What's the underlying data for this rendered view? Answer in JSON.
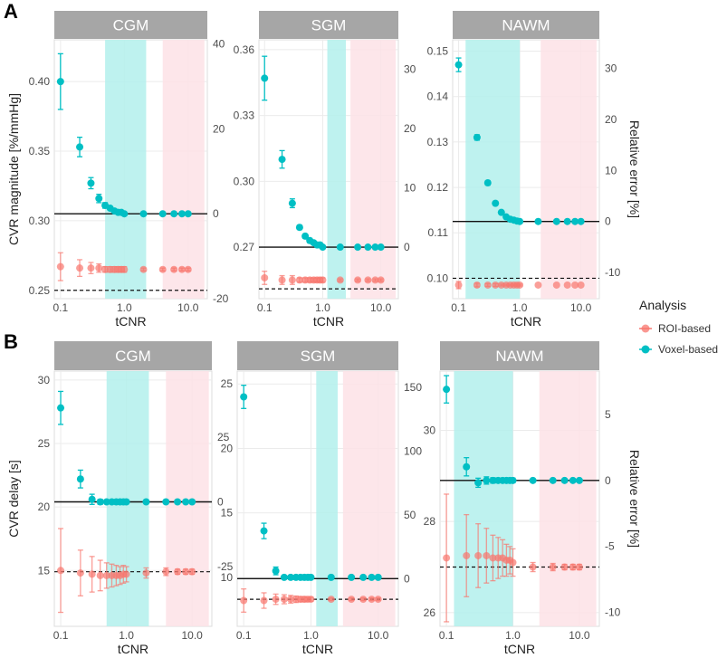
{
  "panels": [
    {
      "letter": "A"
    },
    {
      "letter": "B"
    }
  ],
  "legend": {
    "title": "Analysis",
    "items": [
      {
        "label": "ROI-based",
        "color": "#F8766D"
      },
      {
        "label": "Voxel-based",
        "color": "#00BFC4"
      }
    ]
  },
  "colors": {
    "roi": "#F8766D",
    "voxel": "#00BFC4",
    "voxel_band": "#b3f0ec",
    "roi_band": "#fde2e6",
    "strip": "#a6a6a6",
    "grid": "#ebebeb"
  },
  "chart_data": [
    {
      "type": "scatter",
      "row": "A",
      "title": "CGM",
      "xlabel": "tCNR",
      "ylabel": "CVR magnitude [%/mmHg]",
      "ylabel_right": "",
      "x_scale": "log",
      "xlim": [
        0.08,
        20
      ],
      "xticks": [
        0.1,
        1.0,
        10.0
      ],
      "xtick_labels": [
        "0.1",
        "1.0",
        "10.0"
      ],
      "ylim": [
        0.244,
        0.43
      ],
      "yticks": [
        0.25,
        0.3,
        0.35,
        0.4
      ],
      "ytick_labels": [
        "0.25",
        "0.30",
        "0.35",
        "0.40"
      ],
      "y2_ticks": [
        -20,
        0,
        20,
        40
      ],
      "true_value": 0.305,
      "ref_value": 0.25,
      "voxel_band": [
        0.5,
        2.2
      ],
      "roi_band": [
        4.0,
        18.0
      ],
      "series": [
        {
          "name": "Voxel-based",
          "x": [
            0.1,
            0.2,
            0.3,
            0.4,
            0.5,
            0.6,
            0.7,
            0.8,
            0.9,
            1.0,
            2.0,
            4.0,
            6.0,
            8.0,
            10.0
          ],
          "y": [
            0.4,
            0.353,
            0.327,
            0.316,
            0.311,
            0.309,
            0.307,
            0.306,
            0.306,
            0.305,
            0.305,
            0.305,
            0.305,
            0.305,
            0.305
          ],
          "err": [
            0.02,
            0.007,
            0.004,
            0.003,
            0.002,
            0.001,
            0.001,
            0.001,
            0.001,
            0.001,
            0.0005,
            0.0005,
            0.0005,
            0.0005,
            0.0005
          ]
        },
        {
          "name": "ROI-based",
          "x": [
            0.1,
            0.2,
            0.3,
            0.4,
            0.5,
            0.6,
            0.7,
            0.8,
            0.9,
            1.0,
            2.0,
            4.0,
            6.0,
            8.0,
            10.0
          ],
          "y": [
            0.267,
            0.266,
            0.266,
            0.266,
            0.265,
            0.265,
            0.265,
            0.265,
            0.265,
            0.265,
            0.265,
            0.265,
            0.265,
            0.265,
            0.265
          ],
          "err": [
            0.01,
            0.006,
            0.004,
            0.003,
            0.002,
            0.002,
            0.002,
            0.002,
            0.002,
            0.002,
            0.001,
            0.001,
            0.001,
            0.001,
            0.001
          ]
        }
      ]
    },
    {
      "type": "scatter",
      "row": "A",
      "title": "SGM",
      "xlabel": "tCNR",
      "ylabel": "",
      "ylabel_right": "",
      "x_scale": "log",
      "xlim": [
        0.08,
        20
      ],
      "xticks": [
        0.1,
        1.0,
        10.0
      ],
      "xtick_labels": [
        "0.1",
        "1.0",
        "10.0"
      ],
      "ylim": [
        0.2465,
        0.3645
      ],
      "yticks": [
        0.27,
        0.3,
        0.33,
        0.36
      ],
      "ytick_labels": [
        "0.27",
        "0.30",
        "0.33",
        "0.36"
      ],
      "y2_ticks": [
        -10,
        0,
        10,
        20,
        30
      ],
      "true_value": 0.27,
      "ref_value": 0.251,
      "voxel_band": [
        1.2,
        2.5
      ],
      "roi_band": [
        3.0,
        18.0
      ],
      "series": [
        {
          "name": "Voxel-based",
          "x": [
            0.1,
            0.2,
            0.3,
            0.4,
            0.5,
            0.6,
            0.7,
            0.8,
            0.9,
            1.0,
            2.0,
            4.0,
            6.0,
            8.0,
            10.0
          ],
          "y": [
            0.347,
            0.31,
            0.29,
            0.279,
            0.275,
            0.273,
            0.272,
            0.271,
            0.271,
            0.27,
            0.27,
            0.27,
            0.27,
            0.27,
            0.27
          ],
          "err": [
            0.01,
            0.004,
            0.002,
            0.001,
            0.001,
            0.001,
            0.0005,
            0.0005,
            0.0005,
            0.0005,
            0.0005,
            0.0005,
            0.0005,
            0.0005,
            0.0005
          ]
        },
        {
          "name": "ROI-based",
          "x": [
            0.1,
            0.2,
            0.3,
            0.4,
            0.5,
            0.6,
            0.7,
            0.8,
            0.9,
            1.0,
            2.0,
            4.0,
            6.0,
            8.0,
            10.0
          ],
          "y": [
            0.256,
            0.255,
            0.255,
            0.255,
            0.255,
            0.255,
            0.255,
            0.255,
            0.255,
            0.255,
            0.255,
            0.255,
            0.255,
            0.255,
            0.255
          ],
          "err": [
            0.003,
            0.002,
            0.002,
            0.001,
            0.001,
            0.001,
            0.001,
            0.001,
            0.001,
            0.001,
            0.0005,
            0.0005,
            0.0005,
            0.0005,
            0.0005
          ]
        }
      ]
    },
    {
      "type": "scatter",
      "row": "A",
      "title": "NAWM",
      "xlabel": "tCNR",
      "ylabel": "",
      "ylabel_right": "Relative error [%]",
      "x_scale": "log",
      "xlim": [
        0.08,
        20
      ],
      "xticks": [
        0.1,
        1.0,
        10.0
      ],
      "xtick_labels": [
        "0.1",
        "1.0",
        "10.0"
      ],
      "ylim": [
        0.0955,
        0.1525
      ],
      "yticks": [
        0.1,
        0.11,
        0.12,
        0.13,
        0.14,
        0.15
      ],
      "ytick_labels": [
        "0.10",
        "0.11",
        "0.12",
        "0.13",
        "0.14",
        "0.15"
      ],
      "y2_ticks": [
        -10,
        0,
        10,
        20,
        30
      ],
      "true_value": 0.1125,
      "ref_value": 0.1,
      "voxel_band": [
        0.13,
        1.0
      ],
      "roi_band": [
        2.2,
        18.0
      ],
      "series": [
        {
          "name": "Voxel-based",
          "x": [
            0.1,
            0.2,
            0.3,
            0.4,
            0.5,
            0.6,
            0.7,
            0.8,
            0.9,
            1.0,
            2.0,
            4.0,
            6.0,
            8.0,
            10.0
          ],
          "y": [
            0.147,
            0.131,
            0.121,
            0.1165,
            0.1145,
            0.1135,
            0.113,
            0.1128,
            0.1126,
            0.1125,
            0.1125,
            0.1125,
            0.1125,
            0.1125,
            0.1125
          ],
          "err": [
            0.0015,
            0.0006,
            0.0005,
            0.0004,
            0.0003,
            0.0003,
            0.0002,
            0.0002,
            0.0002,
            0.0002,
            0.0001,
            0.0001,
            0.0001,
            0.0001,
            0.0001
          ]
        },
        {
          "name": "ROI-based",
          "x": [
            0.1,
            0.2,
            0.3,
            0.4,
            0.5,
            0.6,
            0.7,
            0.8,
            0.9,
            1.0,
            2.0,
            4.0,
            6.0,
            8.0,
            10.0
          ],
          "y": [
            0.0985,
            0.0985,
            0.0985,
            0.0985,
            0.0985,
            0.0985,
            0.0985,
            0.0985,
            0.0985,
            0.0985,
            0.0985,
            0.0985,
            0.0985,
            0.0985,
            0.0985
          ],
          "err": [
            0.0008,
            0.0004,
            0.0003,
            0.0003,
            0.0002,
            0.0002,
            0.0002,
            0.0002,
            0.0002,
            0.0002,
            0.0001,
            0.0001,
            0.0001,
            0.0001,
            0.0001
          ]
        }
      ]
    },
    {
      "type": "scatter",
      "row": "B",
      "title": "CGM",
      "xlabel": "tCNR",
      "ylabel": "CVR delay [s]",
      "ylabel_right": "",
      "x_scale": "log",
      "xlim": [
        0.08,
        20
      ],
      "xticks": [
        0.1,
        1.0,
        10.0
      ],
      "xtick_labels": [
        "0.1",
        "1.0",
        "10.0"
      ],
      "ylim": [
        10.6,
        30.7
      ],
      "yticks": [
        15,
        20,
        25,
        30
      ],
      "ytick_labels": [
        "15",
        "20",
        "25",
        "30"
      ],
      "y2_ticks": [
        -25,
        0,
        25
      ],
      "true_value": 20.4,
      "ref_value": 14.9,
      "voxel_band": [
        0.5,
        2.2
      ],
      "roi_band": [
        4.0,
        18.0
      ],
      "series": [
        {
          "name": "Voxel-based",
          "x": [
            0.1,
            0.2,
            0.3,
            0.4,
            0.5,
            0.6,
            0.7,
            0.8,
            0.9,
            1.0,
            2.0,
            4.0,
            6.0,
            8.0,
            10.0
          ],
          "y": [
            27.8,
            22.2,
            20.6,
            20.4,
            20.4,
            20.4,
            20.4,
            20.4,
            20.4,
            20.4,
            20.4,
            20.4,
            20.4,
            20.4,
            20.4
          ],
          "err": [
            1.3,
            0.7,
            0.4,
            0.2,
            0.1,
            0.1,
            0.1,
            0.1,
            0.1,
            0.1,
            0.05,
            0.05,
            0.05,
            0.05,
            0.05
          ]
        },
        {
          "name": "ROI-based",
          "x": [
            0.1,
            0.2,
            0.3,
            0.4,
            0.5,
            0.6,
            0.7,
            0.8,
            0.9,
            1.0,
            2.0,
            4.0,
            6.0,
            8.0,
            10.0
          ],
          "y": [
            15.0,
            14.8,
            14.7,
            14.6,
            14.6,
            14.6,
            14.6,
            14.6,
            14.7,
            14.7,
            14.8,
            14.9,
            14.9,
            14.9,
            14.9
          ],
          "err": [
            3.3,
            1.8,
            1.4,
            1.2,
            1.0,
            0.9,
            0.8,
            0.7,
            0.7,
            0.6,
            0.4,
            0.3,
            0.2,
            0.2,
            0.2
          ]
        }
      ]
    },
    {
      "type": "scatter",
      "row": "B",
      "title": "SGM",
      "xlabel": "tCNR",
      "ylabel": "",
      "ylabel_right": "",
      "x_scale": "log",
      "xlim": [
        0.08,
        20
      ],
      "xticks": [
        0.1,
        1.0,
        10.0
      ],
      "xtick_labels": [
        "0.1",
        "1.0",
        "10.0"
      ],
      "ylim": [
        6.2,
        26.0
      ],
      "yticks": [
        10,
        15,
        20,
        25
      ],
      "ytick_labels": [
        "10",
        "15",
        "20",
        "25"
      ],
      "y2_ticks": [
        0,
        50,
        100,
        150
      ],
      "true_value": 9.9,
      "ref_value": 8.3,
      "voxel_band": [
        1.2,
        2.5
      ],
      "roi_band": [
        3.0,
        18.0
      ],
      "series": [
        {
          "name": "Voxel-based",
          "x": [
            0.1,
            0.2,
            0.3,
            0.4,
            0.5,
            0.6,
            0.7,
            0.8,
            0.9,
            1.0,
            2.0,
            4.0,
            6.0,
            8.0,
            10.0
          ],
          "y": [
            24.0,
            13.6,
            10.5,
            10.0,
            10.0,
            10.0,
            10.0,
            10.0,
            10.0,
            10.0,
            10.0,
            10.0,
            10.0,
            10.0,
            10.0
          ],
          "err": [
            0.9,
            0.6,
            0.3,
            0.1,
            0.05,
            0.05,
            0.05,
            0.05,
            0.05,
            0.05,
            0.05,
            0.05,
            0.05,
            0.05,
            0.05
          ]
        },
        {
          "name": "ROI-based",
          "x": [
            0.1,
            0.2,
            0.3,
            0.4,
            0.5,
            0.6,
            0.7,
            0.8,
            0.9,
            1.0,
            2.0,
            4.0,
            6.0,
            8.0,
            10.0
          ],
          "y": [
            8.2,
            8.2,
            8.3,
            8.3,
            8.3,
            8.3,
            8.3,
            8.3,
            8.3,
            8.3,
            8.3,
            8.3,
            8.3,
            8.3,
            8.3
          ],
          "err": [
            0.9,
            0.6,
            0.4,
            0.35,
            0.3,
            0.25,
            0.2,
            0.2,
            0.15,
            0.15,
            0.1,
            0.1,
            0.1,
            0.1,
            0.1
          ]
        }
      ]
    },
    {
      "type": "scatter",
      "row": "B",
      "title": "NAWM",
      "xlabel": "tCNR",
      "ylabel": "",
      "ylabel_right": "Relative error [%]",
      "x_scale": "log",
      "xlim": [
        0.08,
        20
      ],
      "xticks": [
        0.1,
        1.0,
        10.0
      ],
      "xtick_labels": [
        "0.1",
        "1.0",
        "10.0"
      ],
      "ylim": [
        25.7,
        31.3
      ],
      "yticks": [
        26,
        28,
        30
      ],
      "ytick_labels": [
        "26",
        "28",
        "30"
      ],
      "y2_ticks": [
        -10,
        -5,
        0,
        5
      ],
      "true_value": 28.9,
      "ref_value": 27.0,
      "voxel_band": [
        0.13,
        1.0
      ],
      "roi_band": [
        2.5,
        18.0
      ],
      "series": [
        {
          "name": "Voxel-based",
          "x": [
            0.1,
            0.2,
            0.3,
            0.4,
            0.5,
            0.6,
            0.7,
            0.8,
            0.9,
            1.0,
            2.0,
            4.0,
            6.0,
            8.0,
            10.0
          ],
          "y": [
            30.9,
            29.2,
            28.85,
            28.9,
            28.9,
            28.9,
            28.9,
            28.9,
            28.9,
            28.9,
            28.9,
            28.9,
            28.9,
            28.9,
            28.9
          ],
          "err": [
            0.3,
            0.2,
            0.1,
            0.08,
            0.06,
            0.05,
            0.05,
            0.05,
            0.05,
            0.05,
            0.03,
            0.03,
            0.03,
            0.03,
            0.03
          ]
        },
        {
          "name": "ROI-based",
          "x": [
            0.1,
            0.2,
            0.3,
            0.4,
            0.5,
            0.6,
            0.7,
            0.8,
            0.9,
            1.0,
            2.0,
            4.0,
            6.0,
            8.0,
            10.0
          ],
          "y": [
            27.2,
            27.25,
            27.25,
            27.25,
            27.2,
            27.2,
            27.2,
            27.15,
            27.15,
            27.1,
            27.0,
            27.0,
            27.0,
            27.0,
            27.0
          ],
          "err": [
            1.4,
            0.9,
            0.7,
            0.6,
            0.5,
            0.45,
            0.4,
            0.35,
            0.3,
            0.3,
            0.1,
            0.08,
            0.06,
            0.06,
            0.06
          ]
        }
      ]
    }
  ]
}
